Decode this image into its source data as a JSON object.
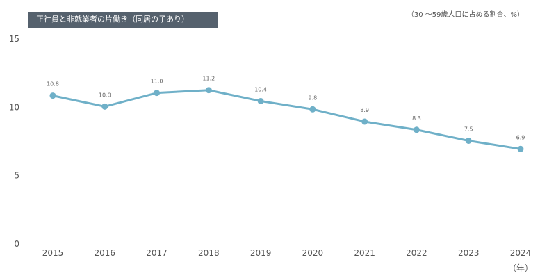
{
  "chart_data": {
    "type": "line",
    "title": "正社員と非就業者の片働き（同居の子あり）",
    "unit_note": "（30 〜59歳人口に占める割合、%）",
    "xlabel": "（年）",
    "ylabel": "",
    "categories": [
      "2015",
      "2016",
      "2017",
      "2018",
      "2019",
      "2020",
      "2021",
      "2022",
      "2023",
      "2024"
    ],
    "values": [
      10.8,
      10.0,
      11.0,
      11.2,
      10.4,
      9.8,
      8.9,
      8.3,
      7.5,
      6.9
    ],
    "data_labels": [
      "10.8",
      "10.0",
      "11.0",
      "11.2",
      "10.4",
      "9.8",
      "8.9",
      "8.3",
      "7.5",
      "6.9"
    ],
    "ylim": [
      0,
      15
    ],
    "yticks": [
      "0",
      "5",
      "10",
      "15"
    ],
    "grid": false,
    "line_color": "#6fb0c8"
  }
}
